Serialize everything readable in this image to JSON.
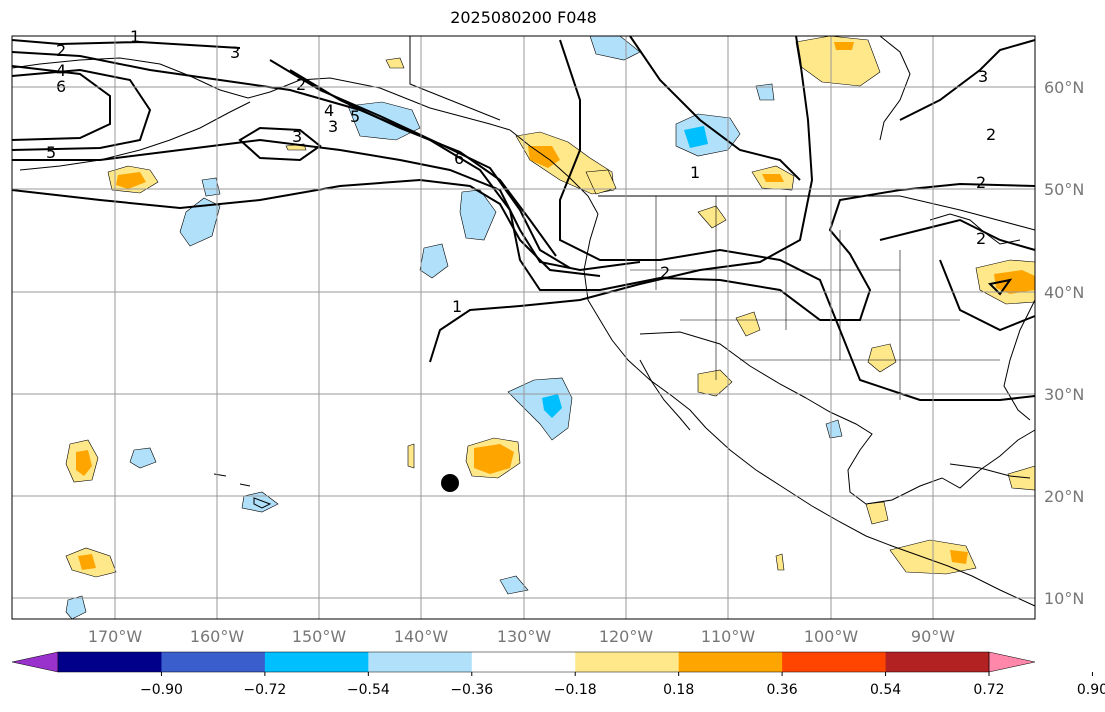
{
  "title": "2025080200 F048",
  "lon_labels": [
    "170°W",
    "160°W",
    "150°W",
    "140°W",
    "130°W",
    "120°W",
    "110°W",
    "100°W",
    "90°W"
  ],
  "lat_labels": [
    "60°N",
    "50°N",
    "40°N",
    "30°N",
    "20°N",
    "10°N"
  ],
  "colorbar": {
    "ticks": [
      "−0.90",
      "−0.72",
      "−0.54",
      "−0.36",
      "−0.18",
      "0.18",
      "0.36",
      "0.54",
      "0.72",
      "0.90"
    ],
    "colors": [
      "#9932cc",
      "#00008b",
      "#3a5fcd",
      "#00bfff",
      "#b0e0fa",
      "#ffffff",
      "#ffe88a",
      "#ffa500",
      "#ff4500",
      "#b22222",
      "#ff88aa"
    ]
  },
  "contour_labels": [
    "1",
    "2",
    "3",
    "4",
    "5",
    "6"
  ],
  "shading_colors": {
    "light_blue": "#b0e0fa",
    "blue": "#00bfff",
    "yellow": "#ffe88a",
    "orange": "#ffa500"
  }
}
